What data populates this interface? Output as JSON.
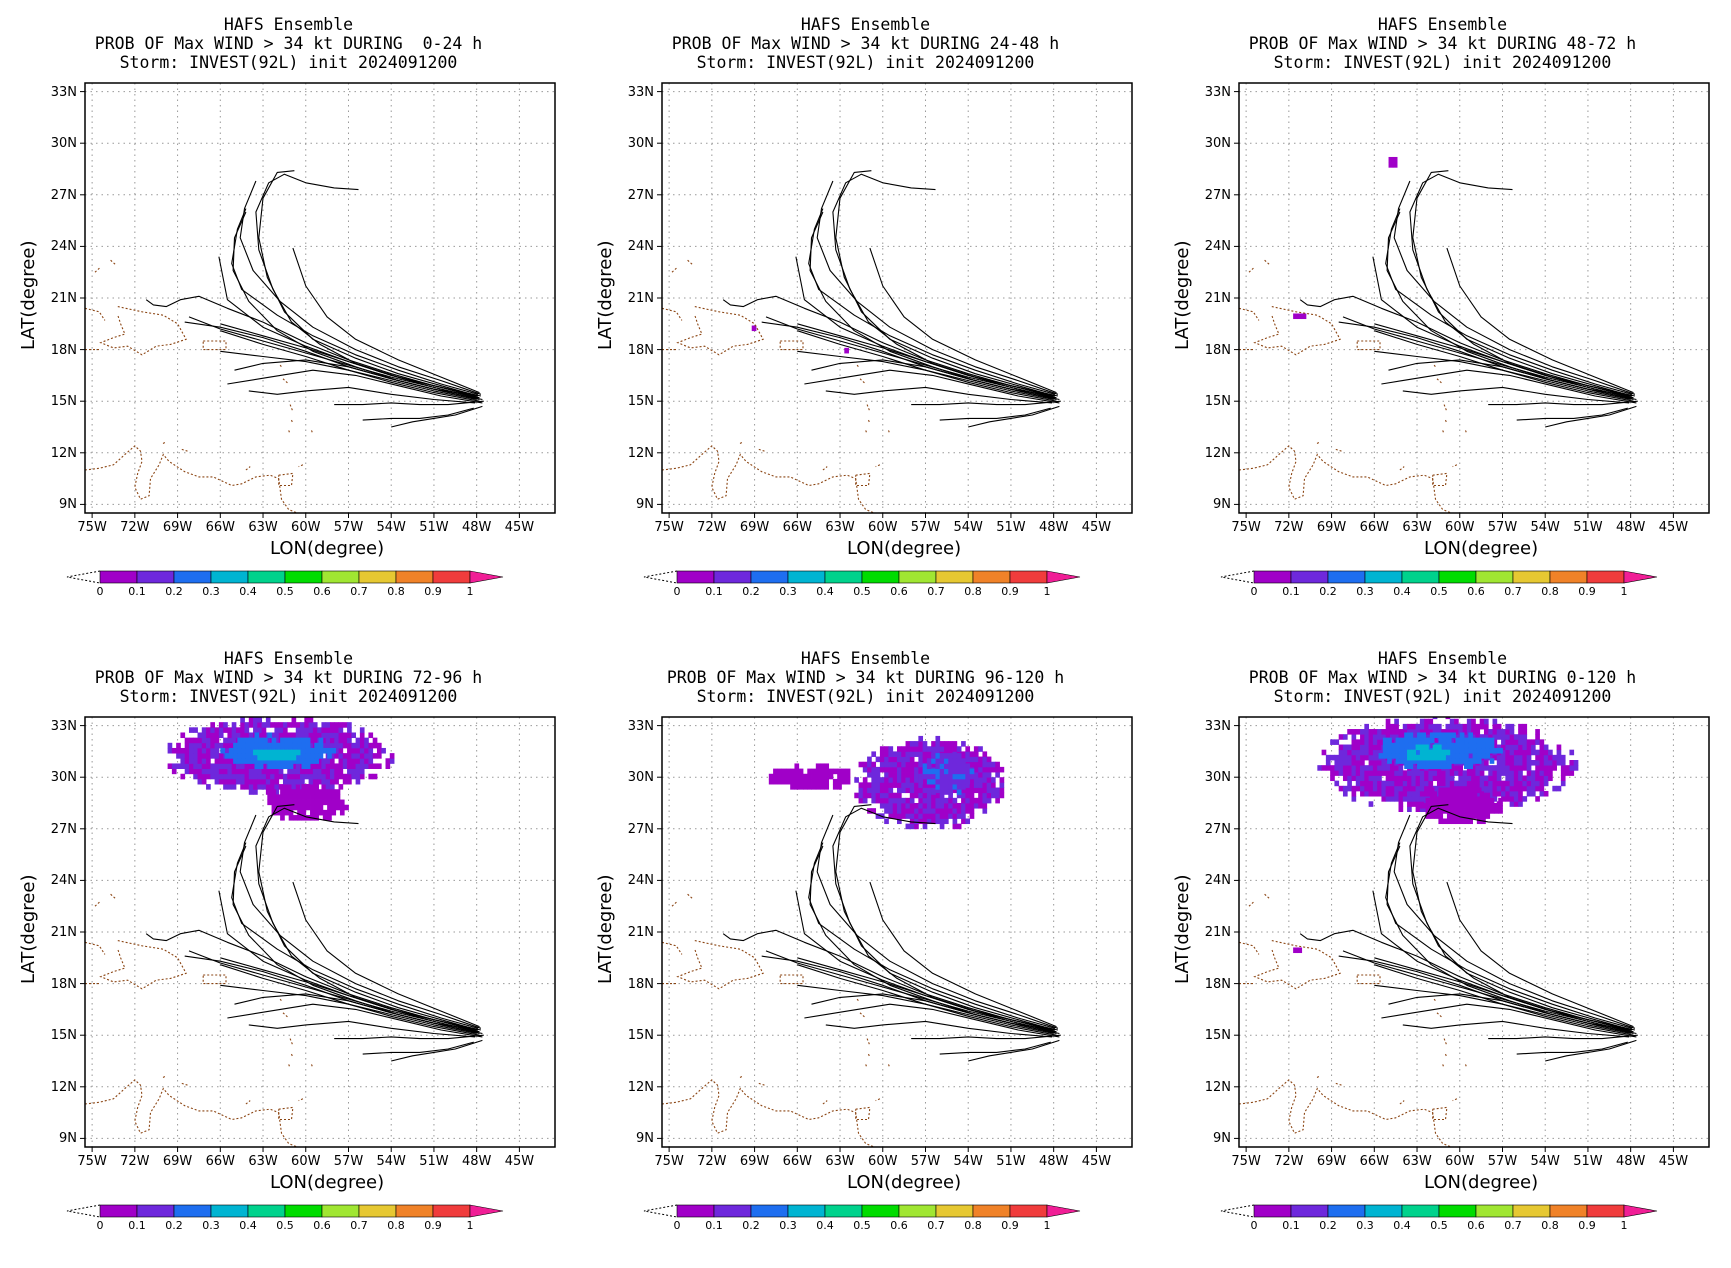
{
  "figure": {
    "axis_labels": {
      "x": "LON(degree)",
      "y": "LAT(degree)"
    },
    "lon_ticks": [
      "75W",
      "72W",
      "69W",
      "66W",
      "63W",
      "60W",
      "57W",
      "54W",
      "51W",
      "48W",
      "45W"
    ],
    "lat_ticks": [
      "33N",
      "30N",
      "27N",
      "24N",
      "21N",
      "18N",
      "15N",
      "12N",
      "9N"
    ],
    "colorbar": {
      "ticks": [
        "0",
        "0.1",
        "0.2",
        "0.3",
        "0.4",
        "0.5",
        "0.6",
        "0.7",
        "0.8",
        "0.9",
        "1"
      ],
      "colors": [
        "#a000c8",
        "#6e28dc",
        "#1e6ef0",
        "#00b4d2",
        "#00d28c",
        "#00dc00",
        "#a0e632",
        "#e6c832",
        "#f08228",
        "#f03c3c",
        "#f01e96"
      ]
    },
    "colors": {
      "track": "#000000",
      "coast": "#8b4513",
      "grid": "#999999"
    }
  },
  "chart_data": [
    {
      "type": "heatmap",
      "title": [
        "HAFS Ensemble",
        "PROB OF Max WIND > 34 kt DURING  0-24 h",
        "Storm: INVEST(92L) init 2024091200"
      ],
      "xlabel": "LON(degree)",
      "ylabel": "LAT(degree)",
      "xlim": [
        -75.5,
        -42.5
      ],
      "ylim": [
        8.5,
        33.5
      ],
      "probability_areas": []
    },
    {
      "type": "heatmap",
      "title": [
        "HAFS Ensemble",
        "PROB OF Max WIND > 34 kt DURING 24-48 h",
        "Storm: INVEST(92L) init 2024091200"
      ],
      "xlabel": "LON(degree)",
      "ylabel": "LAT(degree)",
      "xlim": [
        -75.5,
        -42.5
      ],
      "ylim": [
        8.5,
        33.5
      ],
      "probability_areas": [
        {
          "lon": [
            -69.2,
            -68.8
          ],
          "lat": [
            19.1,
            19.5
          ],
          "prob": 0.05
        },
        {
          "lon": [
            -62.7,
            -62.4
          ],
          "lat": [
            17.8,
            18.0
          ],
          "prob": 0.05
        }
      ]
    },
    {
      "type": "heatmap",
      "title": [
        "HAFS Ensemble",
        "PROB OF Max WIND > 34 kt DURING 48-72 h",
        "Storm: INVEST(92L) init 2024091200"
      ],
      "xlabel": "LON(degree)",
      "ylabel": "LAT(degree)",
      "xlim": [
        -75.5,
        -42.5
      ],
      "ylim": [
        8.5,
        33.5
      ],
      "probability_areas": [
        {
          "lon": [
            -65.0,
            -64.3
          ],
          "lat": [
            28.6,
            29.1
          ],
          "prob": 0.05
        },
        {
          "lon": [
            -71.7,
            -70.9
          ],
          "lat": [
            19.8,
            20.2
          ],
          "prob": 0.05
        }
      ]
    },
    {
      "type": "heatmap",
      "title": [
        "HAFS Ensemble",
        "PROB OF Max WIND > 34 kt DURING 72-96 h",
        "Storm: INVEST(92L) init 2024091200"
      ],
      "xlabel": "LON(degree)",
      "ylabel": "LAT(degree)",
      "xlim": [
        -75.5,
        -42.5
      ],
      "ylim": [
        8.5,
        33.5
      ],
      "probability_areas": [
        {
          "lon": [
            -70.0,
            -54.0
          ],
          "lat": [
            29.0,
            33.5
          ],
          "prob": 0.1
        },
        {
          "lon": [
            -66.0,
            -58.0
          ],
          "lat": [
            30.5,
            32.5
          ],
          "prob": 0.25
        },
        {
          "lon": [
            -64.0,
            -60.5
          ],
          "lat": [
            31.0,
            31.8
          ],
          "prob": 0.35
        },
        {
          "lon": [
            -63.0,
            -57.0
          ],
          "lat": [
            27.5,
            29.5
          ],
          "prob": 0.05
        }
      ]
    },
    {
      "type": "heatmap",
      "title": [
        "HAFS Ensemble",
        "PROB OF Max WIND > 34 kt DURING 96-120 h",
        "Storm: INVEST(92L) init 2024091200"
      ],
      "xlabel": "LON(degree)",
      "ylabel": "LAT(degree)",
      "xlim": [
        -75.5,
        -42.5
      ],
      "ylim": [
        8.5,
        33.5
      ],
      "probability_areas": [
        {
          "lon": [
            -62.0,
            -51.5
          ],
          "lat": [
            27.0,
            32.3
          ],
          "prob": 0.1
        },
        {
          "lon": [
            -57.5,
            -53.5
          ],
          "lat": [
            29.0,
            31.5
          ],
          "prob": 0.18
        },
        {
          "lon": [
            -68.0,
            -62.0
          ],
          "lat": [
            29.3,
            30.7
          ],
          "prob": 0.05
        }
      ]
    },
    {
      "type": "heatmap",
      "title": [
        "HAFS Ensemble",
        "PROB OF Max WIND > 34 kt DURING 0-120 h",
        "Storm: INVEST(92L) init 2024091200"
      ],
      "xlabel": "LON(degree)",
      "ylabel": "LAT(degree)",
      "xlim": [
        -75.5,
        -42.5
      ],
      "ylim": [
        8.5,
        33.5
      ],
      "probability_areas": [
        {
          "lon": [
            -70.0,
            -52.0
          ],
          "lat": [
            28.0,
            33.5
          ],
          "prob": 0.1
        },
        {
          "lon": [
            -66.0,
            -57.0
          ],
          "lat": [
            30.5,
            32.6
          ],
          "prob": 0.25
        },
        {
          "lon": [
            -64.0,
            -60.5
          ],
          "lat": [
            31.0,
            31.8
          ],
          "prob": 0.35
        },
        {
          "lon": [
            -63.0,
            -57.0
          ],
          "lat": [
            27.3,
            29.5
          ],
          "prob": 0.05
        },
        {
          "lon": [
            -71.7,
            -71.0
          ],
          "lat": [
            19.8,
            20.2
          ],
          "prob": 0.05
        }
      ]
    }
  ],
  "tracks": [
    [
      [
        -47.9,
        15.3
      ],
      [
        -50.5,
        15.9
      ],
      [
        -53.5,
        16.6
      ],
      [
        -56.5,
        17.5
      ],
      [
        -59.5,
        18.6
      ],
      [
        -61.5,
        20.2
      ],
      [
        -62.7,
        22.2
      ],
      [
        -63.3,
        24.5
      ],
      [
        -63.0,
        26.8
      ],
      [
        -62.0,
        28.3
      ],
      [
        -60.8,
        28.4
      ]
    ],
    [
      [
        -47.8,
        15.2
      ],
      [
        -50.5,
        15.8
      ],
      [
        -53.5,
        16.4
      ],
      [
        -56.5,
        17.2
      ],
      [
        -59.0,
        18.3
      ],
      [
        -61.0,
        19.6
      ],
      [
        -62.3,
        21.5
      ],
      [
        -63.3,
        23.8
      ],
      [
        -63.5,
        26.0
      ],
      [
        -62.6,
        27.7
      ],
      [
        -61.5,
        28.2
      ],
      [
        -60.0,
        27.7
      ],
      [
        -58.0,
        27.4
      ],
      [
        -56.3,
        27.3
      ]
    ],
    [
      [
        -47.7,
        15.4
      ],
      [
        -50.5,
        16.2
      ],
      [
        -53.5,
        17.0
      ],
      [
        -56.5,
        18.0
      ],
      [
        -59.5,
        19.3
      ],
      [
        -61.8,
        20.8
      ],
      [
        -63.7,
        22.6
      ],
      [
        -64.6,
        24.5
      ],
      [
        -64.3,
        26.2
      ],
      [
        -63.5,
        27.8
      ]
    ],
    [
      [
        -47.6,
        15.1
      ],
      [
        -50.5,
        15.6
      ],
      [
        -53.5,
        16.2
      ],
      [
        -56.5,
        17.0
      ],
      [
        -59.5,
        17.9
      ],
      [
        -62.0,
        19.1
      ],
      [
        -64.0,
        20.8
      ],
      [
        -65.1,
        22.6
      ],
      [
        -65.0,
        24.5
      ],
      [
        -64.2,
        26.0
      ]
    ],
    [
      [
        -47.8,
        15.5
      ],
      [
        -50.5,
        16.4
      ],
      [
        -53.5,
        17.4
      ],
      [
        -56.5,
        18.6
      ],
      [
        -58.5,
        19.9
      ],
      [
        -60.0,
        21.7
      ],
      [
        -60.9,
        23.9
      ]
    ],
    [
      [
        -47.9,
        15.4
      ],
      [
        -50.5,
        16.0
      ],
      [
        -53.5,
        16.8
      ],
      [
        -56.5,
        17.7
      ],
      [
        -59.5,
        18.8
      ],
      [
        -62.0,
        20.0
      ],
      [
        -64.5,
        21.5
      ],
      [
        -65.2,
        23.0
      ],
      [
        -64.8,
        25.0
      ],
      [
        -64.2,
        26.2
      ]
    ],
    [
      [
        -48.0,
        15.2
      ],
      [
        -51.0,
        15.8
      ],
      [
        -54.0,
        16.5
      ],
      [
        -57.0,
        17.3
      ],
      [
        -60.0,
        18.2
      ],
      [
        -63.0,
        19.3
      ],
      [
        -65.5,
        20.9
      ],
      [
        -66.1,
        23.4
      ]
    ],
    [
      [
        -48.0,
        15.3
      ],
      [
        -51.0,
        15.9
      ],
      [
        -54.0,
        16.6
      ],
      [
        -57.0,
        17.4
      ],
      [
        -60.0,
        18.4
      ],
      [
        -63.0,
        19.6
      ],
      [
        -65.5,
        20.4
      ],
      [
        -67.5,
        21.1
      ],
      [
        -68.8,
        20.9
      ],
      [
        -69.8,
        20.5
      ],
      [
        -70.7,
        20.6
      ],
      [
        -71.2,
        20.9
      ]
    ],
    [
      [
        -47.8,
        15.1
      ],
      [
        -51.0,
        15.7
      ],
      [
        -54.0,
        16.3
      ],
      [
        -57.0,
        17.0
      ],
      [
        -60.0,
        17.9
      ],
      [
        -63.0,
        18.7
      ],
      [
        -66.0,
        19.3
      ],
      [
        -68.5,
        19.6
      ]
    ],
    [
      [
        -47.9,
        15.2
      ],
      [
        -51.0,
        15.8
      ],
      [
        -54.0,
        16.4
      ],
      [
        -57.0,
        17.1
      ],
      [
        -60.0,
        17.8
      ],
      [
        -63.0,
        18.5
      ],
      [
        -66.0,
        19.2
      ],
      [
        -68.2,
        19.9
      ]
    ],
    [
      [
        -47.8,
        15.0
      ],
      [
        -51.0,
        15.5
      ],
      [
        -54.0,
        16.1
      ],
      [
        -57.0,
        16.8
      ],
      [
        -60.0,
        17.6
      ],
      [
        -63.0,
        18.3
      ],
      [
        -66.0,
        19.1
      ]
    ],
    [
      [
        -47.7,
        15.3
      ],
      [
        -51.0,
        15.9
      ],
      [
        -54.0,
        16.5
      ],
      [
        -57.0,
        17.3
      ],
      [
        -60.0,
        18.1
      ],
      [
        -63.0,
        18.8
      ],
      [
        -66.0,
        19.5
      ]
    ],
    [
      [
        -48.0,
        15.1
      ],
      [
        -51.0,
        15.6
      ],
      [
        -54.0,
        16.2
      ],
      [
        -57.0,
        16.8
      ],
      [
        -60.0,
        17.3
      ],
      [
        -63.0,
        17.6
      ],
      [
        -66.0,
        17.9
      ]
    ],
    [
      [
        -48.0,
        15.3
      ],
      [
        -51.0,
        15.7
      ],
      [
        -54.0,
        16.3
      ],
      [
        -57.0,
        17.0
      ],
      [
        -60.0,
        17.4
      ],
      [
        -63.0,
        17.2
      ],
      [
        -65.0,
        16.8
      ]
    ],
    [
      [
        -47.6,
        14.9
      ],
      [
        -50.5,
        15.3
      ],
      [
        -53.5,
        15.9
      ],
      [
        -56.5,
        16.5
      ],
      [
        -59.5,
        16.8
      ],
      [
        -62.5,
        16.4
      ],
      [
        -65.5,
        16.0
      ]
    ],
    [
      [
        -48.1,
        14.9
      ],
      [
        -51.0,
        15.1
      ],
      [
        -54.0,
        15.4
      ],
      [
        -57.0,
        15.8
      ],
      [
        -60.0,
        15.6
      ],
      [
        -62.0,
        15.4
      ],
      [
        -64.0,
        15.6
      ]
    ],
    [
      [
        -47.5,
        15.0
      ],
      [
        -50.0,
        14.8
      ],
      [
        -52.0,
        14.8
      ],
      [
        -54.0,
        14.9
      ],
      [
        -56.0,
        14.8
      ],
      [
        -58.0,
        14.8
      ]
    ],
    [
      [
        -48.2,
        14.6
      ],
      [
        -50.0,
        14.2
      ],
      [
        -52.0,
        14.0
      ],
      [
        -54.0,
        14.0
      ],
      [
        -56.0,
        13.9
      ]
    ],
    [
      [
        -47.6,
        14.7
      ],
      [
        -49.5,
        14.2
      ],
      [
        -51.0,
        14.0
      ],
      [
        -52.5,
        13.8
      ],
      [
        -54.0,
        13.5
      ]
    ]
  ],
  "coastlines": [
    [
      [
        -75.5,
        20.4
      ],
      [
        -74.5,
        20.2
      ],
      [
        -74.1,
        19.7
      ]
    ],
    [
      [
        -73.2,
        20.5
      ],
      [
        -71.5,
        20.2
      ],
      [
        -70.0,
        20.0
      ],
      [
        -69.0,
        19.5
      ],
      [
        -68.4,
        18.6
      ],
      [
        -69.5,
        18.3
      ],
      [
        -70.5,
        18.2
      ],
      [
        -71.5,
        17.7
      ],
      [
        -72.5,
        18.2
      ],
      [
        -73.5,
        18.1
      ],
      [
        -74.4,
        18.4
      ],
      [
        -73.5,
        18.7
      ],
      [
        -72.7,
        18.9
      ],
      [
        -73.0,
        19.5
      ],
      [
        -73.2,
        20.0
      ]
    ],
    [
      [
        -67.2,
        18.5
      ],
      [
        -65.6,
        18.5
      ],
      [
        -65.6,
        18.0
      ],
      [
        -67.2,
        18.0
      ],
      [
        -67.2,
        18.5
      ]
    ],
    [
      [
        -75.5,
        18.0
      ],
      [
        -74.5,
        18.0
      ]
    ],
    [
      [
        -74.8,
        22.5
      ],
      [
        -74.4,
        22.8
      ]
    ],
    [
      [
        -73.7,
        23.2
      ],
      [
        -73.3,
        22.9
      ]
    ],
    [
      [
        -75.5,
        11.0
      ],
      [
        -74.5,
        11.1
      ],
      [
        -73.5,
        11.3
      ],
      [
        -72.7,
        11.9
      ],
      [
        -72.0,
        12.4
      ],
      [
        -71.6,
        12.1
      ],
      [
        -71.5,
        11.5
      ],
      [
        -71.8,
        10.8
      ],
      [
        -72.0,
        10.0
      ],
      [
        -71.6,
        9.3
      ],
      [
        -71.0,
        9.5
      ],
      [
        -70.9,
        10.5
      ],
      [
        -70.3,
        11.3
      ],
      [
        -70.0,
        11.9
      ],
      [
        -69.6,
        11.5
      ],
      [
        -68.5,
        10.9
      ],
      [
        -67.5,
        10.6
      ],
      [
        -66.5,
        10.6
      ],
      [
        -65.2,
        10.1
      ],
      [
        -64.5,
        10.2
      ],
      [
        -63.5,
        10.6
      ],
      [
        -62.5,
        10.7
      ],
      [
        -61.9,
        10.5
      ],
      [
        -61.7,
        9.3
      ],
      [
        -61.2,
        8.7
      ],
      [
        -60.6,
        8.5
      ]
    ],
    [
      [
        -61.9,
        10.7
      ],
      [
        -60.9,
        10.8
      ],
      [
        -61.0,
        10.1
      ],
      [
        -61.9,
        10.1
      ],
      [
        -61.9,
        10.7
      ]
    ],
    [
      [
        -64.2,
        11.0
      ],
      [
        -63.9,
        11.2
      ]
    ],
    [
      [
        -68.7,
        12.2
      ],
      [
        -68.3,
        12.1
      ]
    ],
    [
      [
        -69.9,
        12.6
      ],
      [
        -70.1,
        12.5
      ]
    ],
    [
      [
        -61.8,
        17.1
      ],
      [
        -61.7,
        17.0
      ]
    ],
    [
      [
        -61.6,
        16.3
      ],
      [
        -61.2,
        16.0
      ]
    ],
    [
      [
        -61.1,
        14.8
      ],
      [
        -60.9,
        14.4
      ]
    ],
    [
      [
        -61.0,
        13.9
      ],
      [
        -60.9,
        13.7
      ]
    ],
    [
      [
        -59.6,
        13.3
      ],
      [
        -59.5,
        13.1
      ]
    ],
    [
      [
        -61.2,
        13.3
      ],
      [
        -61.1,
        13.1
      ]
    ],
    [
      [
        -60.2,
        11.3
      ],
      [
        -60.5,
        11.2
      ]
    ]
  ]
}
